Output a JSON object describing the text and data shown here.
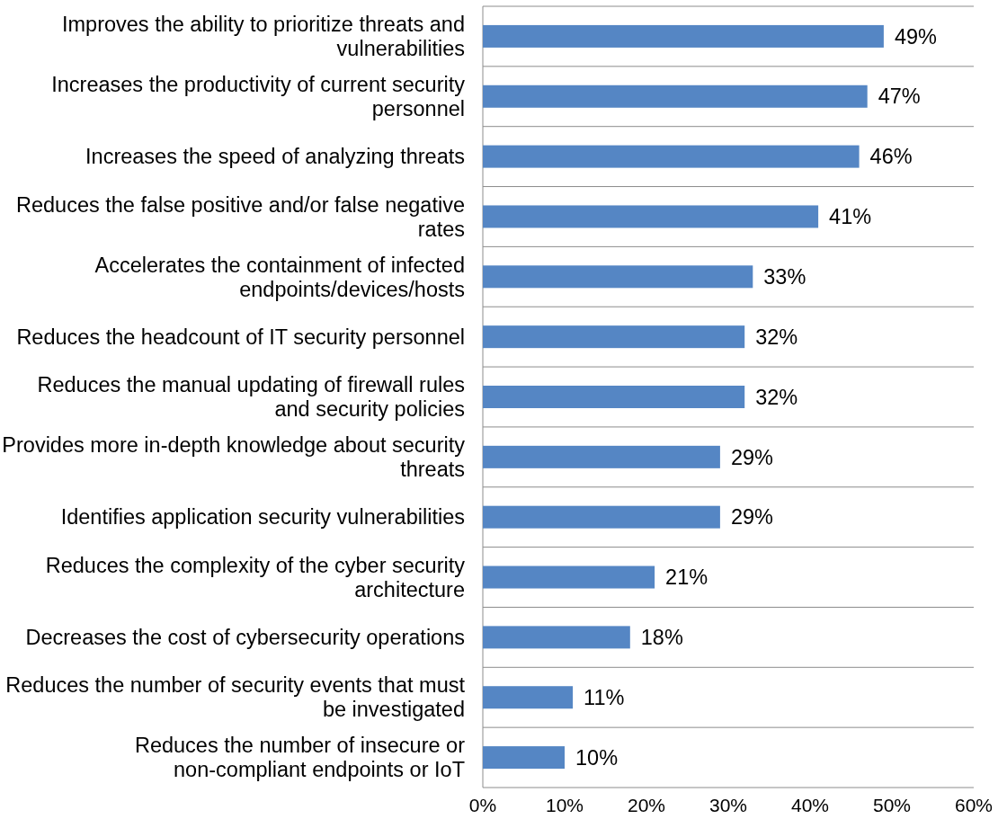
{
  "chart_data": {
    "type": "bar",
    "orientation": "horizontal",
    "categories": [
      "Improves the ability to prioritize threats and vulnerabilities",
      "Increases the productivity of current security personnel",
      "Increases the speed of analyzing threats",
      "Reduces the false positive and/or false negative rates",
      "Accelerates the containment of infected endpoints/devices/hosts",
      "Reduces the headcount of IT security personnel",
      "Reduces the manual updating of firewall rules and security policies",
      "Provides more in-depth knowledge about security threats",
      "Identifies application security vulnerabilities",
      "Reduces the complexity of the cyber security architecture",
      "Decreases the cost of cybersecurity operations",
      "Reduces the number of security events that must be investigated",
      "Reduces the number of insecure or non-compliant endpoints or IoT"
    ],
    "values": [
      49,
      47,
      46,
      41,
      33,
      32,
      32,
      29,
      29,
      21,
      18,
      11,
      10
    ],
    "value_labels": [
      "49%",
      "47%",
      "46%",
      "41%",
      "33%",
      "32%",
      "32%",
      "29%",
      "29%",
      "21%",
      "18%",
      "11%",
      "10%"
    ],
    "color": "#5586c4",
    "xlim": [
      0,
      60
    ],
    "xticks": [
      {
        "value": 0,
        "label": "0%"
      },
      {
        "value": 10,
        "label": "10%"
      },
      {
        "value": 20,
        "label": "20%"
      },
      {
        "value": 30,
        "label": "30%"
      },
      {
        "value": 40,
        "label": "40%"
      },
      {
        "value": 50,
        "label": "50%"
      },
      {
        "value": 60,
        "label": "60%"
      }
    ],
    "grid": "y"
  }
}
